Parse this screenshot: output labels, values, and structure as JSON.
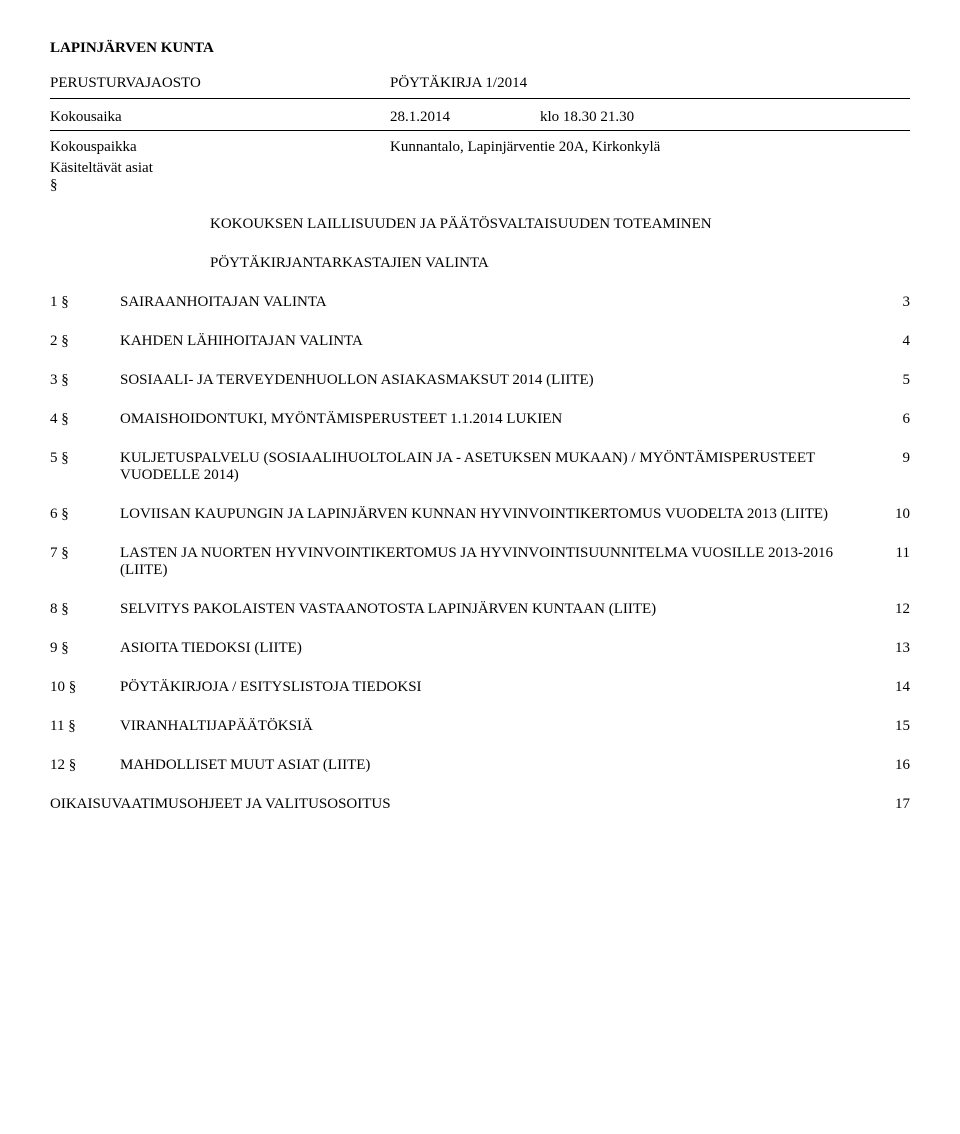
{
  "header": {
    "municipality": "LAPINJÄRVEN KUNTA",
    "committee": "PERUSTURVAJAOSTO",
    "doc_type": "PÖYTÄKIRJA 1/2014"
  },
  "meeting": {
    "time_label": "Kokousaika",
    "time_date": "28.1.2014",
    "time_clock": "klo 18.30 21.30",
    "place_label": "Kokouspaikka",
    "place_value": "Kunnantalo, Lapinjärventie 20A, Kirkonkylä",
    "items_label": "Käsiteltävät asiat",
    "section_mark": "§"
  },
  "preamble": {
    "line1": "KOKOUKSEN LAILLISUUDEN JA PÄÄTÖSVALTAISUUDEN TOTEAMINEN",
    "line2": "PÖYTÄKIRJANTARKASTAJIEN VALINTA"
  },
  "agenda": [
    {
      "num": "1 §",
      "text": "SAIRAANHOITAJAN VALINTA",
      "page": "3"
    },
    {
      "num": "2 §",
      "text": "KAHDEN LÄHIHOITAJAN VALINTA",
      "page": "4"
    },
    {
      "num": "3 §",
      "text": "SOSIAALI- JA TERVEYDENHUOLLON ASIAKASMAKSUT 2014 (LIITE)",
      "page": "5"
    },
    {
      "num": "4 §",
      "text": "OMAISHOIDONTUKI, MYÖNTÄMISPERUSTEET 1.1.2014 LUKIEN",
      "page": "6"
    },
    {
      "num": "5 §",
      "text": "KULJETUSPALVELU (SOSIAALIHUOLTOLAIN JA - ASETUKSEN MUKAAN) / MYÖNTÄMISPERUSTEET VUODELLE 2014)",
      "page": "9"
    },
    {
      "num": "6 §",
      "text": "LOVIISAN KAUPUNGIN JA LAPINJÄRVEN KUNNAN HYVINVOINTIKERTOMUS VUODELTA 2013 (LIITE)",
      "page": "10"
    },
    {
      "num": "7 §",
      "text": "LASTEN JA NUORTEN HYVINVOINTIKERTOMUS JA HYVINVOINTISUUNNITELMA VUOSILLE 2013-2016 (LIITE)",
      "page": "11"
    },
    {
      "num": "8 §",
      "text": "SELVITYS PAKOLAISTEN VASTAANOTOSTA LAPINJÄRVEN KUNTAAN (LIITE)",
      "page": "12"
    },
    {
      "num": "9 §",
      "text": "ASIOITA TIEDOKSI (LIITE)",
      "page": "13"
    },
    {
      "num": "10 §",
      "text": "PÖYTÄKIRJOJA / ESITYSLISTOJA TIEDOKSI",
      "page": "14"
    },
    {
      "num": "11 §",
      "text": "VIRANHALTIJAPÄÄTÖKSIÄ",
      "page": "15"
    },
    {
      "num": "12 §",
      "text": "MAHDOLLISET MUUT ASIAT (LIITE)",
      "page": "16"
    }
  ],
  "footer": {
    "text": "OIKAISUVAATIMUSOHJEET JA VALITUSOSOITUS",
    "page": "17"
  }
}
